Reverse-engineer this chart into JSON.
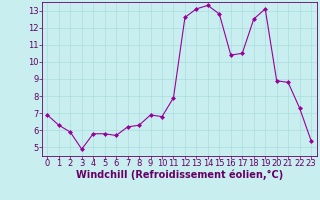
{
  "x": [
    0,
    1,
    2,
    3,
    4,
    5,
    6,
    7,
    8,
    9,
    10,
    11,
    12,
    13,
    14,
    15,
    16,
    17,
    18,
    19,
    20,
    21,
    22,
    23
  ],
  "y": [
    6.9,
    6.3,
    5.9,
    4.9,
    5.8,
    5.8,
    5.7,
    6.2,
    6.3,
    6.9,
    6.8,
    7.9,
    12.6,
    13.1,
    13.3,
    12.8,
    10.4,
    10.5,
    12.5,
    13.1,
    8.9,
    8.8,
    7.3,
    5.4
  ],
  "line_color": "#990099",
  "marker": "D",
  "marker_size": 2,
  "bg_color": "#c8eef0",
  "grid_color": "#aadddd",
  "xlabel": "Windchill (Refroidissement éolien,°C)",
  "xlabel_color": "#660066",
  "xlabel_fontsize": 7,
  "ylim": [
    4.5,
    13.5
  ],
  "yticks": [
    5,
    6,
    7,
    8,
    9,
    10,
    11,
    12,
    13
  ],
  "xticks": [
    0,
    1,
    2,
    3,
    4,
    5,
    6,
    7,
    8,
    9,
    10,
    11,
    12,
    13,
    14,
    15,
    16,
    17,
    18,
    19,
    20,
    21,
    22,
    23
  ],
  "tick_labelsize": 6,
  "axis_color": "#660066",
  "spine_color": "#660066",
  "spine_bottom_color": "#660066"
}
